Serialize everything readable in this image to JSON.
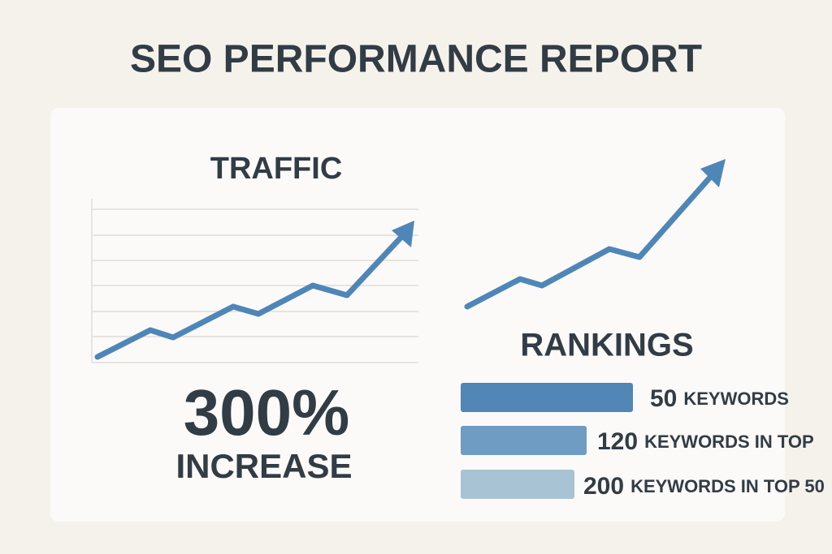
{
  "header": {
    "title": "SEO PERFORMANCE REPORT"
  },
  "traffic": {
    "title": "TRAFFIC",
    "stat": "300%",
    "stat_label": "INCREASE"
  },
  "rankings": {
    "title": "RANKINGS",
    "items": [
      {
        "count": 50,
        "text": "KEYWORDS"
      },
      {
        "count": 120,
        "text": "KEYWORDS IN TOP"
      },
      {
        "count": 200,
        "text": "KEYWORDS IN TOP 50"
      }
    ]
  }
}
